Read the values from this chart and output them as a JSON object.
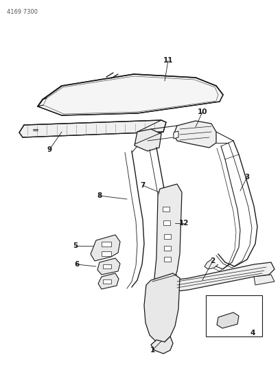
{
  "background_color": "#ffffff",
  "line_color": "#1a1a1a",
  "part_label": "4169 7300",
  "figsize": [
    4.08,
    5.33
  ],
  "dpi": 100,
  "label_fontsize": 7.5,
  "header_fontsize": 6
}
